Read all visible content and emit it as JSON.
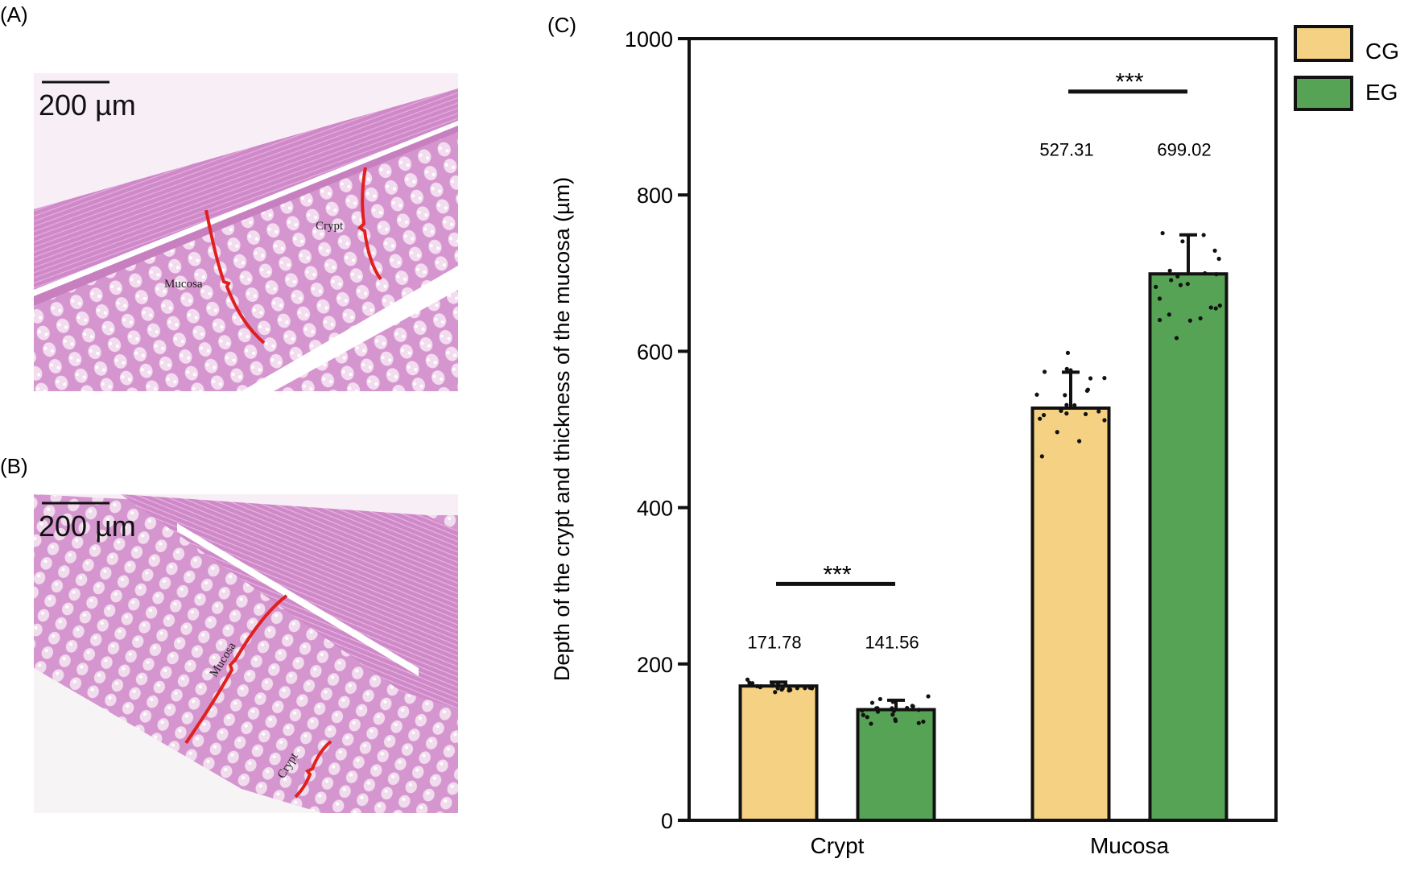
{
  "panels": {
    "a": {
      "label": "(A)",
      "scale_bar": "200 µm",
      "annotations": {
        "mucosa": "Mucosa",
        "crypt": "Crypt"
      }
    },
    "b": {
      "label": "(B)",
      "scale_bar": "200 µm",
      "annotations": {
        "mucosa": "Mucosa",
        "crypt": "Crypt"
      }
    },
    "c": {
      "label": "(C)"
    }
  },
  "colors": {
    "CG": "#f5d184",
    "EG": "#56a356",
    "annotation": "#e0201e",
    "tissue": "#d99ad2"
  },
  "chart_data": {
    "type": "bar",
    "categories": [
      "Crypt",
      "Mucosa"
    ],
    "ylabel": "Depth of the crypt and thickness of the mucosa (µm)",
    "xlabel": "",
    "ylim": [
      0,
      1000
    ],
    "yticks": [
      0,
      200,
      400,
      600,
      800,
      1000
    ],
    "grid": false,
    "legend_placement": "top-right, outside",
    "series": [
      {
        "name": "CG",
        "values": [
          171.78,
          527.31
        ],
        "errors": [
          5,
          46
        ],
        "data_labels": [
          "171.78",
          "527.31"
        ]
      },
      {
        "name": "EG",
        "values": [
          141.56,
          699.02
        ],
        "errors": [
          12,
          50
        ],
        "data_labels": [
          "141.56",
          "699.02"
        ]
      }
    ],
    "significance": [
      {
        "category": "Crypt",
        "label": "***"
      },
      {
        "category": "Mucosa",
        "label": "***"
      }
    ]
  }
}
